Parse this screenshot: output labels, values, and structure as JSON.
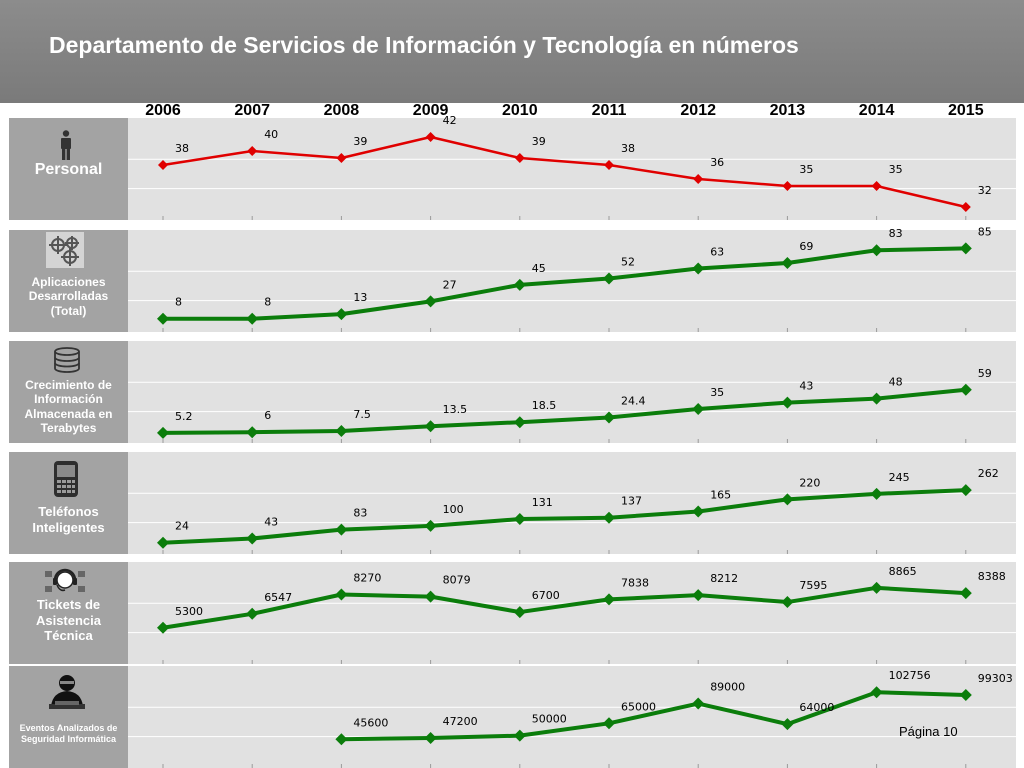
{
  "title": "Departamento de Servicios de Información y Tecnología en números",
  "page_label": "Página 10",
  "colors": {
    "red": "#e00000",
    "green": "#0b7d0b"
  },
  "chart_data": [
    {
      "type": "line",
      "id": "personal",
      "label": "Personal",
      "icon": "person-icon",
      "color": "#e00000",
      "categories": [
        "2006",
        "2007",
        "2008",
        "2009",
        "2010",
        "2011",
        "2012",
        "2013",
        "2014",
        "2015"
      ],
      "values": [
        38,
        40,
        39,
        42,
        39,
        38,
        36,
        35,
        35,
        32
      ],
      "value_labels": [
        "38",
        "40",
        "39",
        "42",
        "39",
        "38",
        "36",
        "35",
        "35",
        "32"
      ],
      "ylim": [
        31,
        43
      ]
    },
    {
      "type": "line",
      "id": "aplicaciones",
      "label": "Aplicaciones Desarrolladas (Total)",
      "icon": "gears-icon",
      "color": "#0b7d0b",
      "categories": [
        "2006",
        "2007",
        "2008",
        "2009",
        "2010",
        "2011",
        "2012",
        "2013",
        "2014",
        "2015"
      ],
      "values": [
        8,
        8,
        13,
        27,
        45,
        52,
        63,
        69,
        83,
        85
      ],
      "value_labels": [
        "8",
        "8",
        "13",
        "27",
        "45",
        "52",
        "63",
        "69",
        "83",
        "85"
      ],
      "ylim": [
        0,
        92
      ]
    },
    {
      "type": "line",
      "id": "almacenamiento",
      "label": "Crecimiento de Información Almacenada en Terabytes",
      "icon": "database-icon",
      "color": "#0b7d0b",
      "categories": [
        "2006",
        "2007",
        "2008",
        "2009",
        "2010",
        "2011",
        "2012",
        "2013",
        "2014",
        "2015"
      ],
      "values": [
        5.2,
        6,
        7.5,
        13.5,
        18.5,
        24.4,
        35,
        43,
        48,
        59
      ],
      "value_labels": [
        "5.2",
        "6",
        "7.5",
        "13.5",
        "18.5",
        "24.4",
        "35",
        "43",
        "48",
        "59"
      ],
      "ylim": [
        0,
        105
      ]
    },
    {
      "type": "line",
      "id": "telefonos",
      "label": "Teléfonos Inteligentes",
      "icon": "smartphone-icon",
      "color": "#0b7d0b",
      "categories": [
        "2006",
        "2007",
        "2008",
        "2009",
        "2010",
        "2011",
        "2012",
        "2013",
        "2014",
        "2015"
      ],
      "values": [
        24,
        43,
        83,
        100,
        131,
        137,
        165,
        220,
        245,
        262
      ],
      "value_labels": [
        "24",
        "43",
        "83",
        "100",
        "131",
        "137",
        "165",
        "220",
        "245",
        "262"
      ],
      "ylim": [
        0,
        380
      ]
    },
    {
      "type": "line",
      "id": "tickets",
      "label": "Tickets de Asistencia Técnica",
      "icon": "headset-icon",
      "color": "#0b7d0b",
      "categories": [
        "2006",
        "2007",
        "2008",
        "2009",
        "2010",
        "2011",
        "2012",
        "2013",
        "2014",
        "2015"
      ],
      "values": [
        5300,
        6547,
        8270,
        8079,
        6700,
        7838,
        8212,
        7595,
        8865,
        8388
      ],
      "value_labels": [
        "5300",
        "6547",
        "8270",
        "8079",
        "6700",
        "7838",
        "8212",
        "7595",
        "8865",
        "8388"
      ],
      "ylim": [
        2600,
        10100
      ]
    },
    {
      "type": "line",
      "id": "seguridad",
      "label": "Eventos Analizados de Seguridad Informática",
      "icon": "hacker-icon",
      "color": "#0b7d0b",
      "categories": [
        "2006",
        "2007",
        "2008",
        "2009",
        "2010",
        "2011",
        "2012",
        "2013",
        "2014",
        "2015"
      ],
      "values": [
        null,
        null,
        45600,
        47200,
        50000,
        65000,
        89000,
        64000,
        102756,
        99303
      ],
      "value_labels": [
        null,
        null,
        "45600",
        "47200",
        "50000",
        "65000",
        "89000",
        "64000",
        "102756",
        "99303"
      ],
      "ylim": [
        18000,
        120000
      ]
    }
  ]
}
